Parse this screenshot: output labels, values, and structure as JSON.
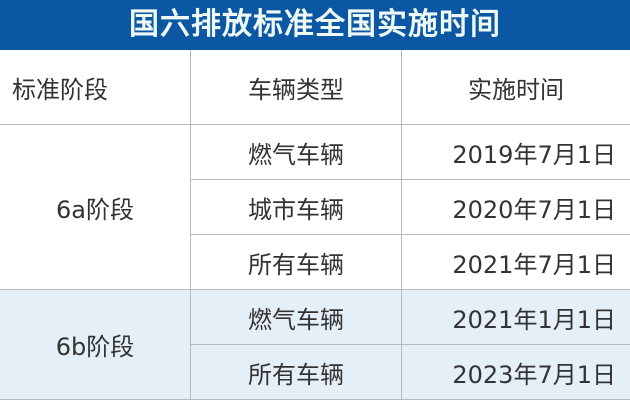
{
  "title": "国六排放标准全国实施时间",
  "headers": [
    "标准阶段",
    "车辆类型",
    "实施时间"
  ],
  "groups": [
    {
      "stage": "6a阶段",
      "rows": [
        {
          "type": "燃气车辆",
          "date": "2019年7月1日"
        },
        {
          "type": "城市车辆",
          "date": "2020年7月1日"
        },
        {
          "type": "所有车辆",
          "date": "2021年7月1日"
        }
      ]
    },
    {
      "stage": "6b阶段",
      "rows": [
        {
          "type": "燃气车辆",
          "date": "2021年1月1日"
        },
        {
          "type": "所有车辆",
          "date": "2023年7月1日"
        }
      ]
    }
  ],
  "colors": {
    "title_bg": "#0b57a3",
    "stage_b_bg": "#e5eff8"
  }
}
